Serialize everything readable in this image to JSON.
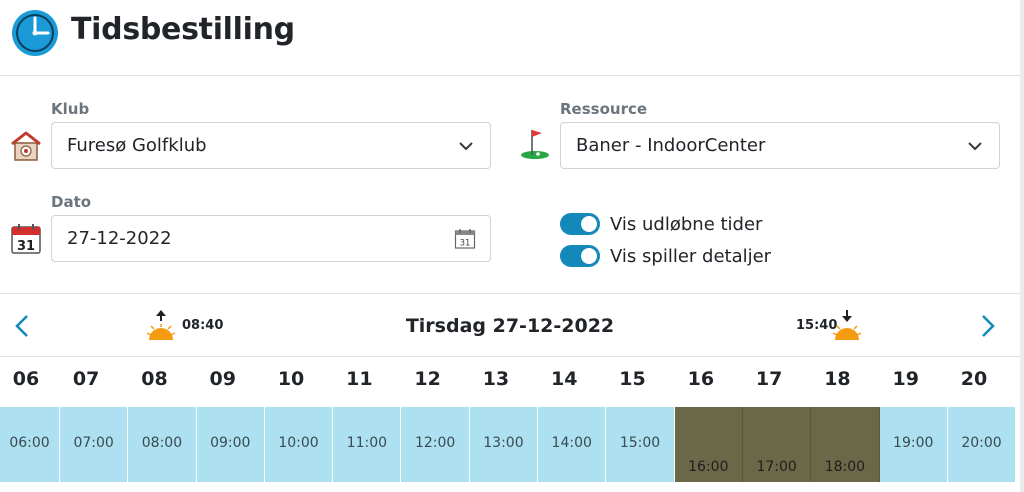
{
  "header": {
    "title": "Tidsbestilling",
    "logo_icon": "clock-icon",
    "logo_color": "#1a9ad6"
  },
  "club": {
    "label": "Klub",
    "value": "Furesø Golfklub",
    "icon": "clubhouse-icon"
  },
  "resource": {
    "label": "Ressource",
    "value": "Baner - IndoorCenter",
    "icon": "golf-flag-icon"
  },
  "date": {
    "label": "Dato",
    "value": "27-12-2022",
    "icon": "calendar-icon",
    "calendar_day": "31"
  },
  "toggles": [
    {
      "label": "Vis udløbne tider",
      "checked": true
    },
    {
      "label": "Vis spiller detaljer",
      "checked": true
    }
  ],
  "navigation": {
    "heading": "Tirsdag 27-12-2022",
    "sunrise": "08:40",
    "sunset": "15:40"
  },
  "hours": [
    "06",
    "07",
    "08",
    "09",
    "10",
    "11",
    "12",
    "13",
    "14",
    "15",
    "16",
    "17",
    "18",
    "19",
    "20"
  ],
  "slots": [
    {
      "time": "06:00",
      "status": "available"
    },
    {
      "time": "07:00",
      "status": "available"
    },
    {
      "time": "08:00",
      "status": "available"
    },
    {
      "time": "09:00",
      "status": "available"
    },
    {
      "time": "10:00",
      "status": "available"
    },
    {
      "time": "11:00",
      "status": "available"
    },
    {
      "time": "12:00",
      "status": "available"
    },
    {
      "time": "13:00",
      "status": "available"
    },
    {
      "time": "14:00",
      "status": "available"
    },
    {
      "time": "15:00",
      "status": "available"
    },
    {
      "time": "16:00",
      "status": "booked"
    },
    {
      "time": "17:00",
      "status": "booked"
    },
    {
      "time": "18:00",
      "status": "booked"
    },
    {
      "time": "19:00",
      "status": "available"
    },
    {
      "time": "20:00",
      "status": "available"
    }
  ],
  "colors": {
    "accent": "#1289b8",
    "slot_available": "#ade0f0",
    "slot_booked": "#6b6749"
  }
}
